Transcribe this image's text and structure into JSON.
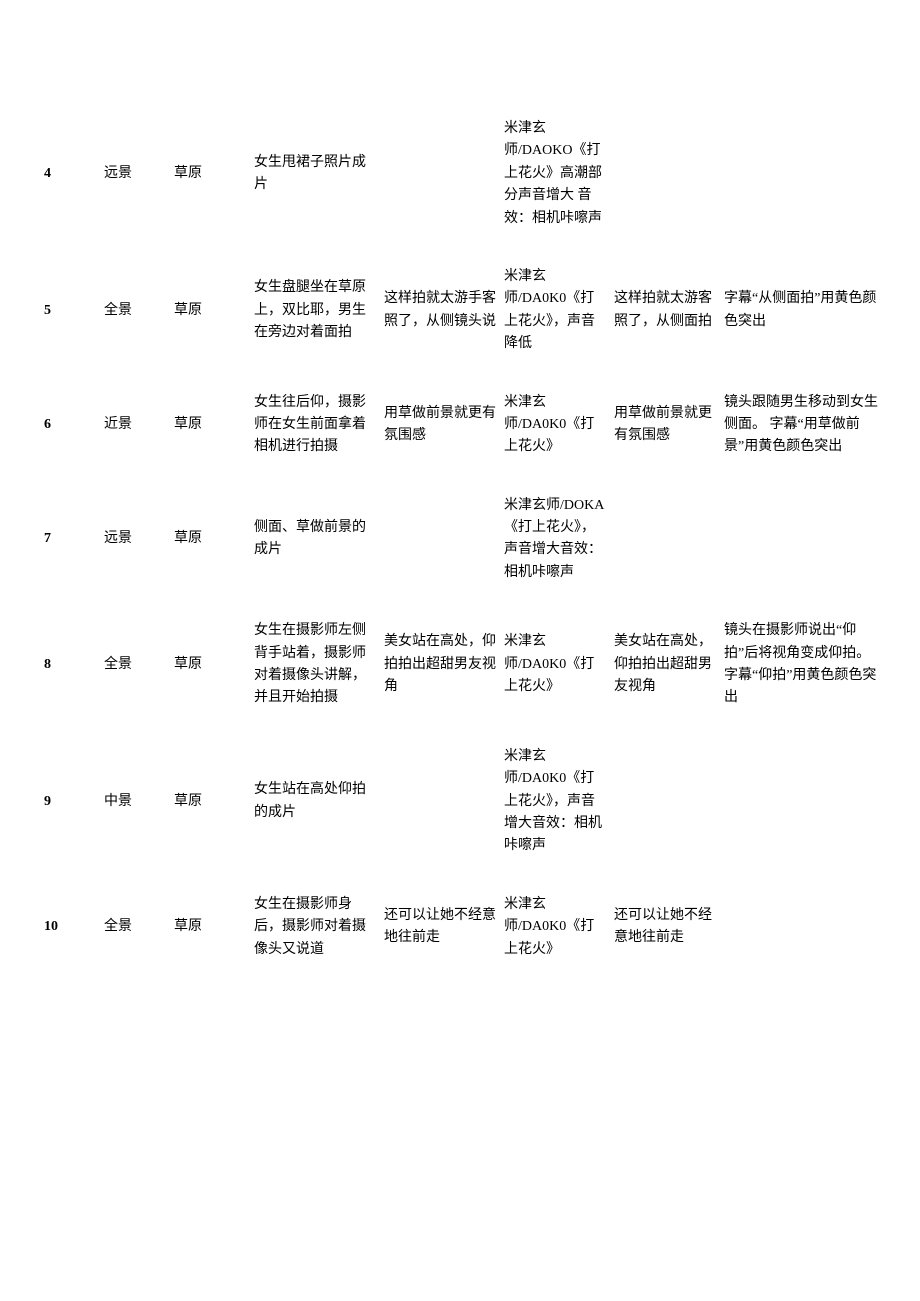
{
  "table": {
    "columns": [
      {
        "key": "num",
        "class": "col-num"
      },
      {
        "key": "shot",
        "class": "col-shot"
      },
      {
        "key": "loc",
        "class": "col-loc"
      },
      {
        "key": "desc",
        "class": "col-desc"
      },
      {
        "key": "dialog",
        "class": "col-dialog"
      },
      {
        "key": "audio",
        "class": "col-audio"
      },
      {
        "key": "subtitle",
        "class": "col-subtitle"
      },
      {
        "key": "note",
        "class": "col-note"
      }
    ],
    "rows": [
      {
        "num": "4",
        "shot": "远景",
        "loc": "草原",
        "desc": "女生甩裙子照片成片",
        "dialog": "",
        "audio": "米津玄师/DAOKO《打上花火》高潮部分声音增大\n音效：相机咔嚓声",
        "subtitle": "",
        "note": ""
      },
      {
        "num": "5",
        "shot": "全景",
        "loc": "草原",
        "desc": "女生盘腿坐在草原上，双比耶，男生在旁边对着面拍",
        "dialog": "这样拍就太游手客照了，从侧镜头说",
        "audio": "米津玄师/DA0K0《打上花火》，声音降低",
        "subtitle": "这样拍就太游客照了，从侧面拍",
        "note": "字幕“从侧面拍”用黄色颜色突出"
      },
      {
        "num": "6",
        "shot": "近景",
        "loc": "草原",
        "desc": "女生往后仰，摄影师在女生前面拿着相机进行拍摄",
        "dialog": "用草做前景就更有氛围感",
        "audio": "米津玄师/DA0K0《打上花火》",
        "subtitle": "用草做前景就更有氛围感",
        "note": "镜头跟随男生移动到女生侧面。\n字幕“用草做前景”用黄色颜色突出"
      },
      {
        "num": "7",
        "shot": "远景",
        "loc": "草原",
        "desc": "侧面、草做前景的成片",
        "dialog": "",
        "audio": "米津玄师/DOKA《打上花火》，声音增大音效：相机咔嚓声",
        "subtitle": "",
        "note": ""
      },
      {
        "num": "8",
        "shot": "全景",
        "loc": "草原",
        "desc": "女生在摄影师左侧背手站着，摄影师对着摄像头讲解，并且开始拍摄",
        "dialog": "美女站在高处，仰拍拍出超甜男友视角",
        "audio": "米津玄师/DA0K0《打上花火》",
        "subtitle": "美女站在高处，仰拍拍出超甜男友视角",
        "note": "镜头在摄影师说出“仰拍”后将视角变成仰拍。\n字幕“仰拍”用黄色颜色突出"
      },
      {
        "num": "9",
        "shot": "中景",
        "loc": "草原",
        "desc": "女生站在高处仰拍的成片",
        "dialog": "",
        "audio": "米津玄师/DA0K0《打上花火》，声音增大音效：相机咔嚓声",
        "subtitle": "",
        "note": ""
      },
      {
        "num": "10",
        "shot": "全景",
        "loc": "草原",
        "desc": "女生在摄影师身后，摄影师对着摄像头又说道",
        "dialog": "还可以让她不经意地往前走",
        "audio": "米津玄师/DA0K0《打上花火》",
        "subtitle": "还可以让她不经意地往前走",
        "note": ""
      }
    ]
  },
  "style": {
    "background_color": "#ffffff",
    "text_color": "#000000",
    "font_family": "SimSun",
    "font_size_pt": 11,
    "line_height": 1.6,
    "num_font_weight": "bold"
  }
}
